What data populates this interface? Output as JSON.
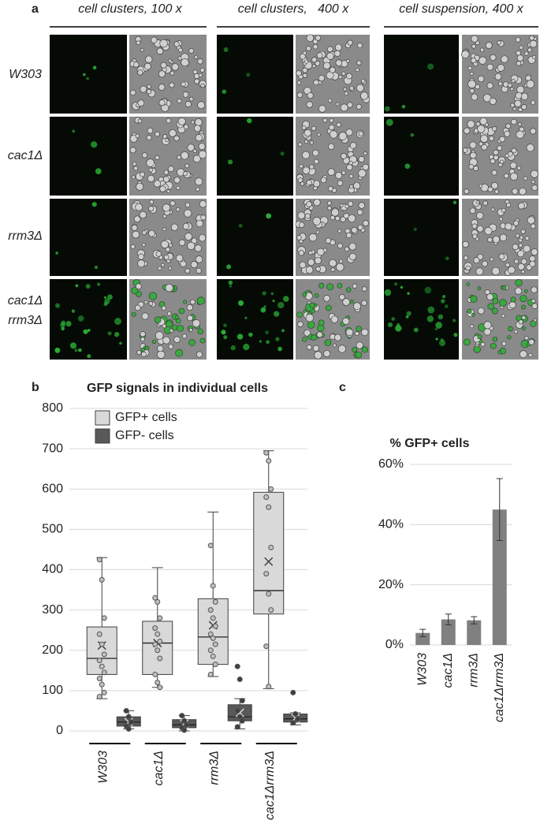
{
  "panel_a": {
    "label": "a",
    "column_headers": [
      "cell clusters, 100 x",
      "cell clusters,   400 x",
      "cell suspension, 400 x"
    ],
    "row_labels": [
      [
        "W303"
      ],
      [
        "cac1Δ"
      ],
      [
        "rrm3Δ"
      ],
      [
        "cac1Δ",
        "rrm3Δ"
      ]
    ]
  },
  "chart_data": [
    {
      "type": "box",
      "panel_label": "b",
      "title": "GFP signals in individual cells",
      "categories": [
        "W303",
        "cac1Δ",
        "rrm3Δ",
        "cac1Δrrm3Δ"
      ],
      "ylim": [
        0,
        800
      ],
      "yticks": [
        0,
        100,
        200,
        300,
        400,
        500,
        600,
        700,
        800
      ],
      "grid": true,
      "legend": "upper left",
      "series": [
        {
          "name": "GFP+ cells",
          "color": "#d9d9d9",
          "boxes": [
            {
              "min": 80,
              "q1": 140,
              "median": 180,
              "q3": 258,
              "max": 430,
              "mean": 212,
              "points": [
                425,
                375,
                280,
                240,
                215,
                190,
                175,
                160,
                145,
                130,
                115,
                95,
                85
              ]
            },
            {
              "min": 108,
              "q1": 140,
              "median": 218,
              "q3": 272,
              "max": 405,
              "mean": 218,
              "points": [
                330,
                320,
                280,
                255,
                240,
                222,
                215,
                200,
                180,
                140,
                120,
                108
              ]
            },
            {
              "min": 135,
              "q1": 165,
              "median": 233,
              "q3": 328,
              "max": 543,
              "mean": 262,
              "points": [
                460,
                360,
                320,
                300,
                280,
                260,
                240,
                230,
                215,
                200,
                185,
                165,
                140
              ]
            },
            {
              "min": 105,
              "q1": 290,
              "median": 348,
              "q3": 592,
              "max": 695,
              "mean": 420,
              "points": [
                690,
                670,
                600,
                580,
                555,
                455,
                390,
                340,
                300,
                210,
                110
              ]
            }
          ]
        },
        {
          "name": "GFP- cells",
          "color": "#595959",
          "boxes": [
            {
              "min": 5,
              "q1": 12,
              "median": 22,
              "q3": 35,
              "max": 50,
              "mean": 22,
              "points": [
                50,
                35,
                22,
                12,
                5
              ]
            },
            {
              "min": 0,
              "q1": 8,
              "median": 15,
              "q3": 28,
              "max": 38,
              "mean": 18,
              "points": [
                38,
                25,
                15,
                8,
                2
              ]
            },
            {
              "min": 5,
              "q1": 25,
              "median": 35,
              "q3": 65,
              "max": 80,
              "mean": 45,
              "points": [
                160,
                128,
                75,
                50,
                35,
                25,
                10
              ]
            },
            {
              "min": 15,
              "q1": 22,
              "median": 30,
              "q3": 42,
              "max": 45,
              "mean": 32,
              "points": [
                95,
                42,
                30,
                20
              ]
            }
          ]
        }
      ]
    },
    {
      "type": "bar",
      "panel_label": "c",
      "title": "% GFP+ cells",
      "categories": [
        "W303",
        "cac1Δ",
        "rrm3Δ",
        "cac1Δrrm3Δ"
      ],
      "values": [
        4,
        8.5,
        8.2,
        45
      ],
      "errors": [
        1.2,
        1.8,
        1.2,
        10.3
      ],
      "color": "#808080",
      "ylim": [
        0,
        60
      ],
      "yticks": [
        {
          "value": 0,
          "label": "0%"
        },
        {
          "value": 20,
          "label": "20%"
        },
        {
          "value": 40,
          "label": "40%"
        },
        {
          "value": 60,
          "label": "60%"
        }
      ],
      "grid": true
    }
  ]
}
